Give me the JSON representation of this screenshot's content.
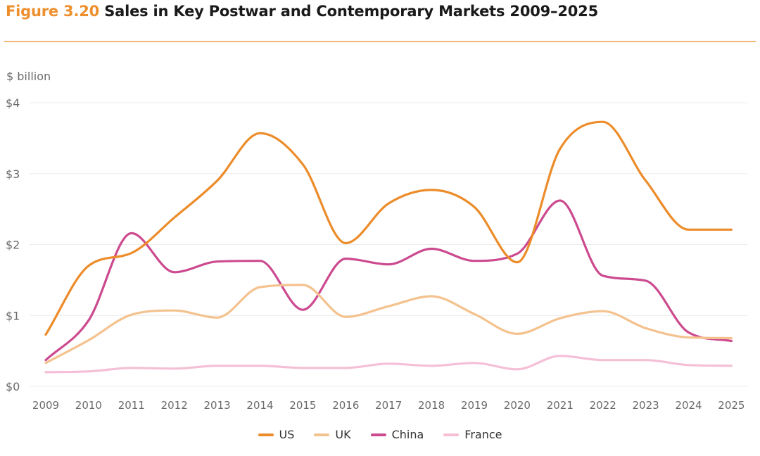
{
  "header": {
    "figure_label": "Figure 3.20",
    "title": "Sales in Key Postwar and Contemporary Markets 2009–2025"
  },
  "chart_data": {
    "type": "line",
    "title": "Sales in Key Postwar and Contemporary Markets 2009–2025",
    "ylabel": "$ billion",
    "xlabel": "",
    "ylim": [
      0,
      4
    ],
    "y_ticks": [
      0,
      1,
      2,
      3,
      4
    ],
    "y_tick_labels": [
      "$0",
      "$1",
      "$2",
      "$3",
      "$4"
    ],
    "categories": [
      "2009",
      "2010",
      "2011",
      "2012",
      "2013",
      "2014",
      "2015",
      "2016",
      "2017",
      "2018",
      "2019",
      "2020",
      "2021",
      "2022",
      "2023",
      "2024",
      "2025"
    ],
    "grid": true,
    "legend_position": "bottom-center",
    "series": [
      {
        "name": "US",
        "color": "#ec8c2a",
        "values": [
          0.73,
          1.7,
          1.88,
          2.38,
          2.9,
          3.57,
          3.13,
          2.02,
          2.58,
          2.77,
          2.53,
          1.75,
          3.35,
          3.73,
          2.9,
          2.21,
          2.21
        ]
      },
      {
        "name": "UK",
        "color": "#f4c28e",
        "values": [
          0.33,
          0.65,
          1.01,
          1.07,
          0.97,
          1.4,
          1.43,
          0.98,
          1.13,
          1.27,
          1.02,
          0.74,
          0.96,
          1.06,
          0.82,
          0.69,
          0.68
        ]
      },
      {
        "name": "China",
        "color": "#cc4a8f",
        "values": [
          0.37,
          0.93,
          2.16,
          1.61,
          1.76,
          1.77,
          1.08,
          1.8,
          1.72,
          1.94,
          1.77,
          1.87,
          2.62,
          1.56,
          1.49,
          0.76,
          0.64
        ]
      },
      {
        "name": "France",
        "color": "#f5bfd6",
        "values": [
          0.2,
          0.21,
          0.26,
          0.25,
          0.29,
          0.29,
          0.26,
          0.26,
          0.32,
          0.29,
          0.33,
          0.24,
          0.43,
          0.37,
          0.37,
          0.3,
          0.29
        ]
      }
    ]
  }
}
